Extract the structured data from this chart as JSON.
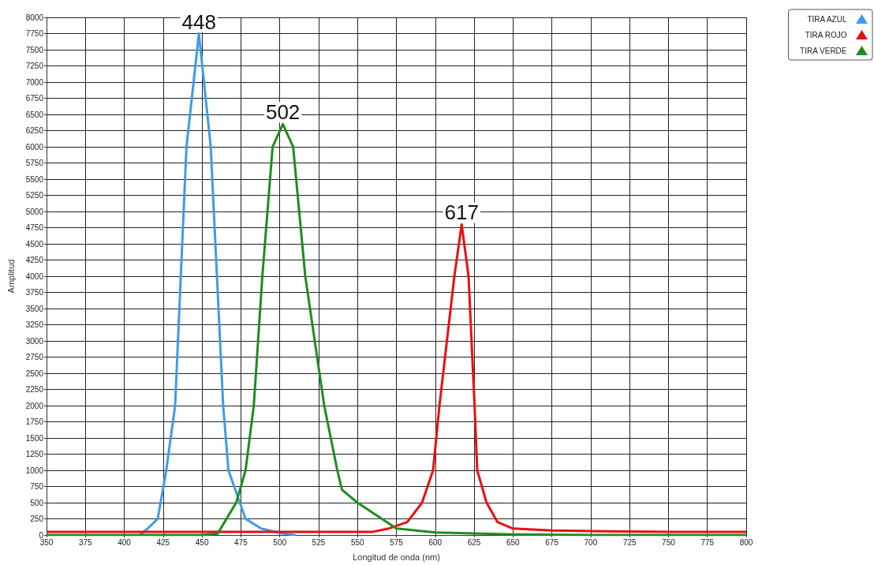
{
  "chart_data": {
    "type": "line",
    "xlabel": "Longitud de onda (nm)",
    "ylabel": "Amplitud",
    "xlim": [
      350,
      800
    ],
    "xticks": [
      350,
      375,
      400,
      425,
      450,
      475,
      500,
      525,
      550,
      575,
      600,
      625,
      650,
      675,
      700,
      725,
      750,
      775,
      800
    ],
    "ylim": [
      0,
      8000
    ],
    "yticks": [
      0,
      250,
      500,
      750,
      1000,
      1250,
      1500,
      1750,
      2000,
      2250,
      2500,
      2750,
      3000,
      3250,
      3500,
      3750,
      4000,
      4250,
      4500,
      4750,
      5000,
      5250,
      5500,
      5750,
      6000,
      6250,
      6500,
      6750,
      7000,
      7250,
      7500,
      7750,
      8000
    ],
    "grid": true,
    "legend": "top right",
    "marker": "none",
    "series": [
      {
        "name": "TIRA AZUL",
        "color": "#3f9be8",
        "x": [
          410,
          415,
          421.5,
          427,
          432.7,
          440,
          448,
          455.6,
          463.6,
          467,
          478,
          488,
          500,
          510
        ],
        "values": [
          0,
          100,
          250,
          1000,
          2000,
          6000,
          7750,
          6000,
          2000,
          1000,
          250,
          100,
          30,
          0
        ]
      },
      {
        "name": "TIRA ROJO",
        "color": "#e81010",
        "x": [
          350,
          400,
          450,
          500,
          550,
          560,
          570,
          582,
          591.5,
          598.6,
          602.7,
          612.3,
          617,
          621.4,
          625.3,
          627,
          633,
          640,
          650,
          675,
          700,
          750,
          800
        ],
        "values": [
          50,
          50,
          50,
          50,
          50,
          50,
          100,
          200,
          500,
          1000,
          2000,
          4000,
          4800,
          4000,
          2000,
          1000,
          500,
          200,
          100,
          70,
          60,
          50,
          50
        ]
      },
      {
        "name": "TIRA VERDE",
        "color": "#1f8c1f",
        "x": [
          350,
          400,
          450,
          460,
          472,
          478,
          483.3,
          488.8,
          495.4,
          502,
          508.6,
          516.4,
          528.6,
          537,
          540,
          550,
          575,
          600,
          650,
          700,
          750,
          800
        ],
        "values": [
          0,
          0,
          0,
          20,
          500,
          1000,
          2000,
          4000,
          6000,
          6350,
          6000,
          4000,
          2000,
          1000,
          700,
          500,
          100,
          40,
          10,
          0,
          0,
          0
        ]
      }
    ],
    "annotations": [
      {
        "text": "448",
        "x": 448,
        "y": 7750
      },
      {
        "text": "502",
        "x": 502,
        "y": 6350
      },
      {
        "text": "617",
        "x": 617,
        "y": 4800
      }
    ]
  }
}
